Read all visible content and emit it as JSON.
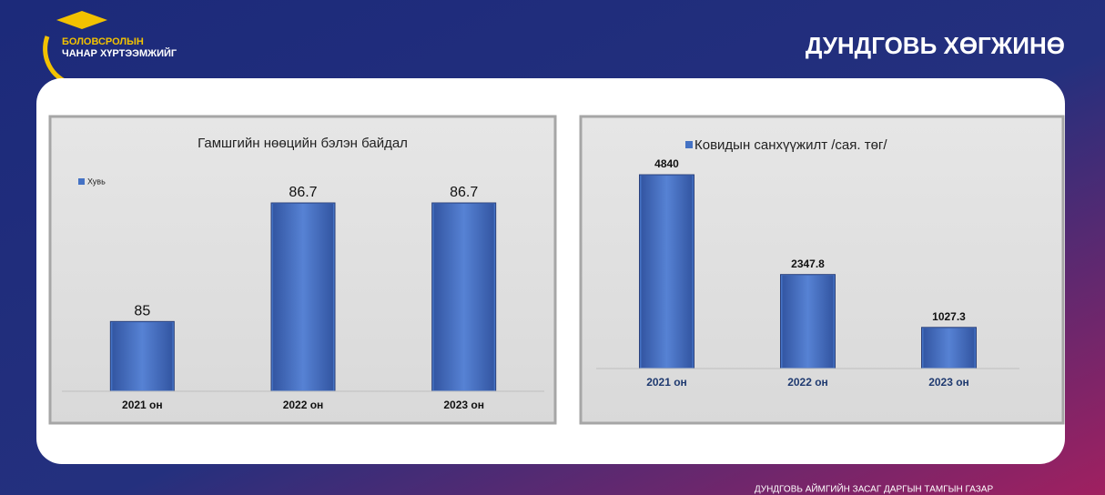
{
  "header": {
    "logo_line1": "БОЛОВСРОЛЫН",
    "logo_line2": "ЧАНАР ХҮРТЭЭМЖИЙГ",
    "slogan": "ДУНДГОВЬ ХӨГЖИНӨ"
  },
  "footer": "ДУНДГОВЬ АЙМГИЙН ЗАСАГ ДАРГЫН ТАМГЫН ГАЗАР",
  "chart_data": [
    {
      "type": "bar",
      "title": "Гамшгийн нөөцийн бэлэн байдал",
      "categories": [
        "2021 он",
        "2022 он",
        "2023 он"
      ],
      "series": [
        {
          "name": "Хувь",
          "color": "#4472c4",
          "values": [
            85,
            86.7,
            86.7
          ]
        }
      ],
      "ylim": [
        84,
        87
      ],
      "legend": "top-left"
    },
    {
      "type": "bar",
      "categories": [
        "2021 он",
        "2022 он",
        "2023 он"
      ],
      "series": [
        {
          "name": "Ковидын санхүүжилт /сая. төг/",
          "color": "#4472c4",
          "values": [
            4840,
            2347.8,
            1027.3
          ]
        }
      ],
      "ylim": [
        0,
        5000
      ],
      "legend": "top"
    }
  ]
}
